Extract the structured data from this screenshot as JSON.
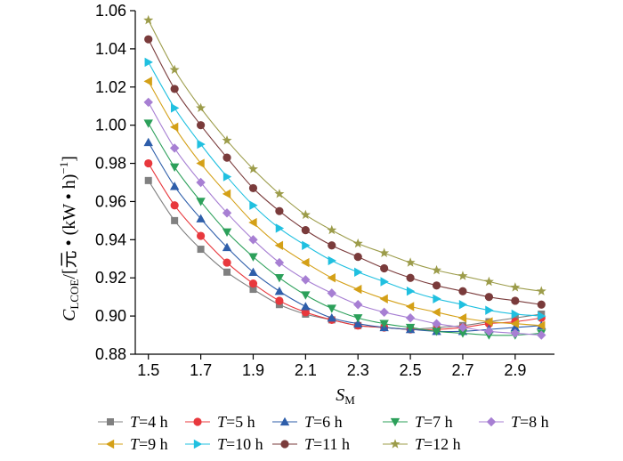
{
  "chart_data": {
    "type": "line",
    "title": "",
    "xlabel": {
      "main": "S",
      "sub": "M"
    },
    "ylabel": {
      "c": "C",
      "sub": "LCOE",
      "rest": "/[元 • (kW • h)",
      "sup": "−1",
      "close": "]"
    },
    "xlim": [
      1.45,
      3.05
    ],
    "ylim": [
      0.88,
      1.06
    ],
    "x_ticks": [
      1.5,
      1.7,
      1.9,
      2.1,
      2.3,
      2.5,
      2.7,
      2.9
    ],
    "x_tick_labels": [
      "1.5",
      "1.7",
      "1.9",
      "2.1",
      "2.3",
      "2.5",
      "2.7",
      "2.9"
    ],
    "y_ticks": [
      0.88,
      0.9,
      0.92,
      0.94,
      0.96,
      0.98,
      1.0,
      1.02,
      1.04,
      1.06
    ],
    "y_tick_labels": [
      "0.88",
      "0.90",
      "0.92",
      "0.94",
      "0.96",
      "0.98",
      "1.00",
      "1.02",
      "1.04",
      "1.06"
    ],
    "grid": false,
    "legend_position": "bottom",
    "x": [
      1.5,
      1.6,
      1.7,
      1.8,
      1.9,
      2.0,
      2.1,
      2.2,
      2.3,
      2.4,
      2.5,
      2.6,
      2.7,
      2.8,
      2.9,
      3.0
    ],
    "series": [
      {
        "name_italic": "T",
        "name_rest": "=4 h",
        "color": "#808080",
        "marker": "square",
        "values": [
          0.971,
          0.95,
          0.935,
          0.923,
          0.914,
          0.906,
          0.901,
          0.898,
          0.895,
          0.894,
          0.893,
          0.894,
          0.895,
          0.897,
          0.899,
          0.901
        ]
      },
      {
        "name_italic": "T",
        "name_rest": "=5 h",
        "color": "#e8383d",
        "marker": "circle",
        "values": [
          0.98,
          0.958,
          0.942,
          0.928,
          0.917,
          0.908,
          0.902,
          0.898,
          0.895,
          0.894,
          0.893,
          0.893,
          0.894,
          0.896,
          0.897,
          0.899
        ]
      },
      {
        "name_italic": "T",
        "name_rest": "=6 h",
        "color": "#2e5eaa",
        "marker": "triangle-up",
        "values": [
          0.991,
          0.968,
          0.951,
          0.936,
          0.923,
          0.913,
          0.905,
          0.899,
          0.896,
          0.894,
          0.893,
          0.892,
          0.892,
          0.893,
          0.894,
          0.895
        ]
      },
      {
        "name_italic": "T",
        "name_rest": "=7 h",
        "color": "#2ca05a",
        "marker": "triangle-down",
        "values": [
          1.001,
          0.978,
          0.96,
          0.944,
          0.931,
          0.92,
          0.911,
          0.904,
          0.899,
          0.896,
          0.894,
          0.892,
          0.891,
          0.89,
          0.89,
          0.891
        ]
      },
      {
        "name_italic": "T",
        "name_rest": "=8 h",
        "color": "#a77fd3",
        "marker": "diamond",
        "values": [
          1.012,
          0.988,
          0.97,
          0.954,
          0.94,
          0.928,
          0.919,
          0.912,
          0.906,
          0.902,
          0.899,
          0.896,
          0.894,
          0.892,
          0.891,
          0.89
        ]
      },
      {
        "name_italic": "T",
        "name_rest": "=9 h",
        "color": "#d4a017",
        "marker": "triangle-left",
        "values": [
          1.023,
          0.999,
          0.98,
          0.964,
          0.949,
          0.937,
          0.928,
          0.92,
          0.914,
          0.909,
          0.905,
          0.902,
          0.899,
          0.897,
          0.896,
          0.895
        ]
      },
      {
        "name_italic": "T",
        "name_rest": "=10 h",
        "color": "#20c0e0",
        "marker": "triangle-right",
        "values": [
          1.033,
          1.009,
          0.99,
          0.973,
          0.958,
          0.946,
          0.937,
          0.929,
          0.923,
          0.918,
          0.913,
          0.909,
          0.906,
          0.903,
          0.901,
          0.9
        ]
      },
      {
        "name_italic": "T",
        "name_rest": "=11 h",
        "color": "#7a3b3b",
        "marker": "circle",
        "values": [
          1.045,
          1.019,
          1.0,
          0.983,
          0.967,
          0.955,
          0.945,
          0.937,
          0.931,
          0.925,
          0.92,
          0.916,
          0.913,
          0.91,
          0.908,
          0.906
        ]
      },
      {
        "name_italic": "T",
        "name_rest": "=12 h",
        "color": "#9c9c4a",
        "marker": "star",
        "values": [
          1.055,
          1.029,
          1.009,
          0.992,
          0.977,
          0.964,
          0.953,
          0.945,
          0.938,
          0.933,
          0.928,
          0.924,
          0.921,
          0.918,
          0.915,
          0.913
        ]
      }
    ]
  }
}
